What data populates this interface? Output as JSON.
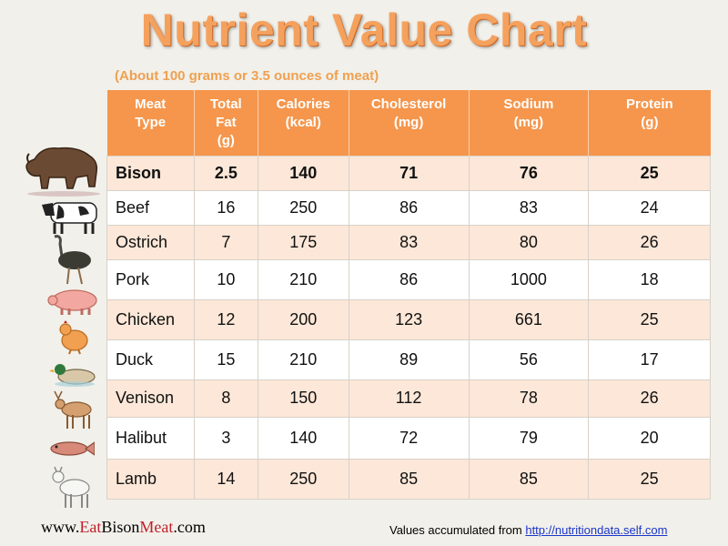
{
  "title": "Nutrient Value Chart",
  "subtitle": "(About 100 grams or 3.5 ounces of meat)",
  "table": {
    "headers": [
      [
        "Meat",
        "Type"
      ],
      [
        "Total",
        "Fat",
        "(g)"
      ],
      [
        "Calories",
        "(kcal)"
      ],
      [
        "Cholesterol",
        "(mg)"
      ],
      [
        "Sodium",
        "(mg)"
      ],
      [
        "Protein",
        "(g)"
      ]
    ],
    "rows": [
      [
        "Bison",
        "2.5",
        "140",
        "71",
        "76",
        "25"
      ],
      [
        "Beef",
        "16",
        "250",
        "86",
        "83",
        "24"
      ],
      [
        "Ostrich",
        "7",
        "175",
        "83",
        "80",
        "26"
      ],
      [
        "Pork",
        "10",
        "210",
        "86",
        "1000",
        "18"
      ],
      [
        "Chicken",
        "12",
        "200",
        "123",
        "661",
        "25"
      ],
      [
        "Duck",
        "15",
        "210",
        "89",
        "56",
        "17"
      ],
      [
        "Venison",
        "8",
        "150",
        "112",
        "78",
        "26"
      ],
      [
        "Halibut",
        "3",
        "140",
        "72",
        "79",
        "20"
      ],
      [
        "Lamb",
        "14",
        "250",
        "85",
        "85",
        "25"
      ]
    ]
  },
  "footer": {
    "site_prefix": "www.",
    "site_eat": "Eat",
    "site_bison": "Bison",
    "site_meat": "Meat",
    "site_suffix": ".com",
    "source_text": "Values accumulated from ",
    "source_link": "http://nutritiondata.self.com"
  },
  "colors": {
    "header_bg": "#f5964c",
    "alt_row": "#fce7d8",
    "title": "#f5a15e",
    "brand_red": "#c0202a"
  },
  "icons": [
    "bison-icon",
    "cow-icon",
    "ostrich-icon",
    "pig-icon",
    "chicken-icon",
    "duck-icon",
    "deer-icon",
    "fish-icon",
    "goat-icon"
  ]
}
